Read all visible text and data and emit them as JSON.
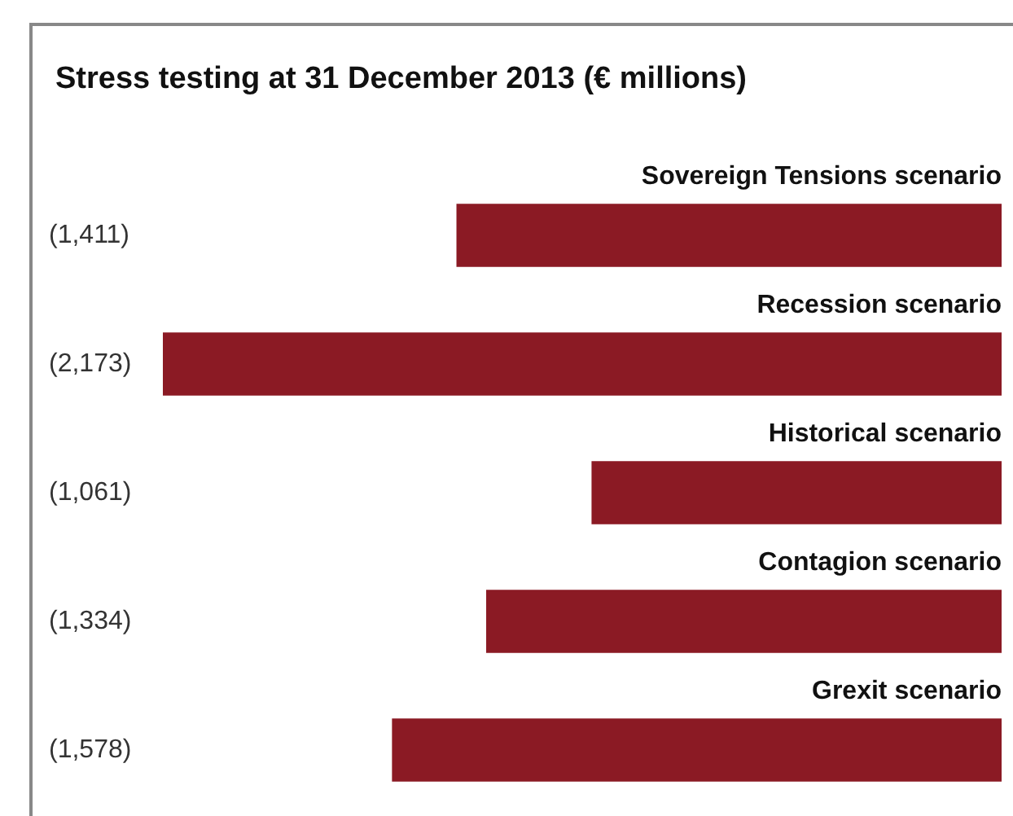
{
  "chart_data": {
    "type": "bar",
    "orientation": "horizontal",
    "title": "Stress testing at 31 December 2013 (€ millions)",
    "categories": [
      "Sovereign Tensions scenario",
      "Recession scenario",
      "Historical scenario",
      "Contagion scenario",
      "Grexit scenario"
    ],
    "values": [
      -1411,
      -2173,
      -1061,
      -1334,
      -1578
    ],
    "value_labels": [
      "(1,411)",
      "(2,173)",
      "(1,061)",
      "(1,334)",
      "(1,578)"
    ],
    "color": "#8b1a24",
    "legend": false,
    "tick_labels": false
  }
}
